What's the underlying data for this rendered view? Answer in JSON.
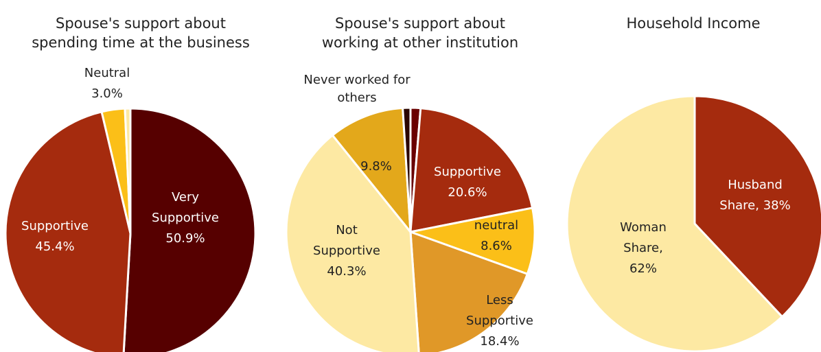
{
  "chart_data": [
    {
      "type": "pie",
      "title": "Spouse's support about spending time at the business",
      "categories": [
        "Very Supportive",
        "Supportive",
        "Neutral",
        null
      ],
      "values": [
        50.9,
        45.4,
        3.0,
        0.7
      ],
      "value_labels": [
        "50.9%",
        "45.4%",
        "3.0%",
        null
      ],
      "colors": [
        "#560000",
        "#a52b0e",
        "#fbbf18",
        "#fde9a3"
      ]
    },
    {
      "type": "pie",
      "title": "Spouse's support about working at other institution",
      "categories": [
        null,
        "Supportive",
        "neutral",
        "Less Supportive",
        "Not Supportive",
        "Never worked for others",
        null
      ],
      "values": [
        1.3,
        20.6,
        8.6,
        18.4,
        40.3,
        9.8,
        1.0
      ],
      "value_labels": [
        null,
        "20.6%",
        "8.6%",
        "18.4%",
        "40.3%",
        "9.8%",
        null
      ],
      "colors": [
        "#6a0000",
        "#a52b0e",
        "#fbbf18",
        "#e09828",
        "#fde9a3",
        "#e3a81b",
        "#2a0500"
      ]
    },
    {
      "type": "pie",
      "title": "Household Income",
      "categories": [
        "Husband Share,",
        "Woman Share,"
      ],
      "values": [
        38,
        62
      ],
      "value_labels": [
        "38%",
        "62%"
      ],
      "colors": [
        "#a52b0e",
        "#fde9a3"
      ]
    }
  ]
}
